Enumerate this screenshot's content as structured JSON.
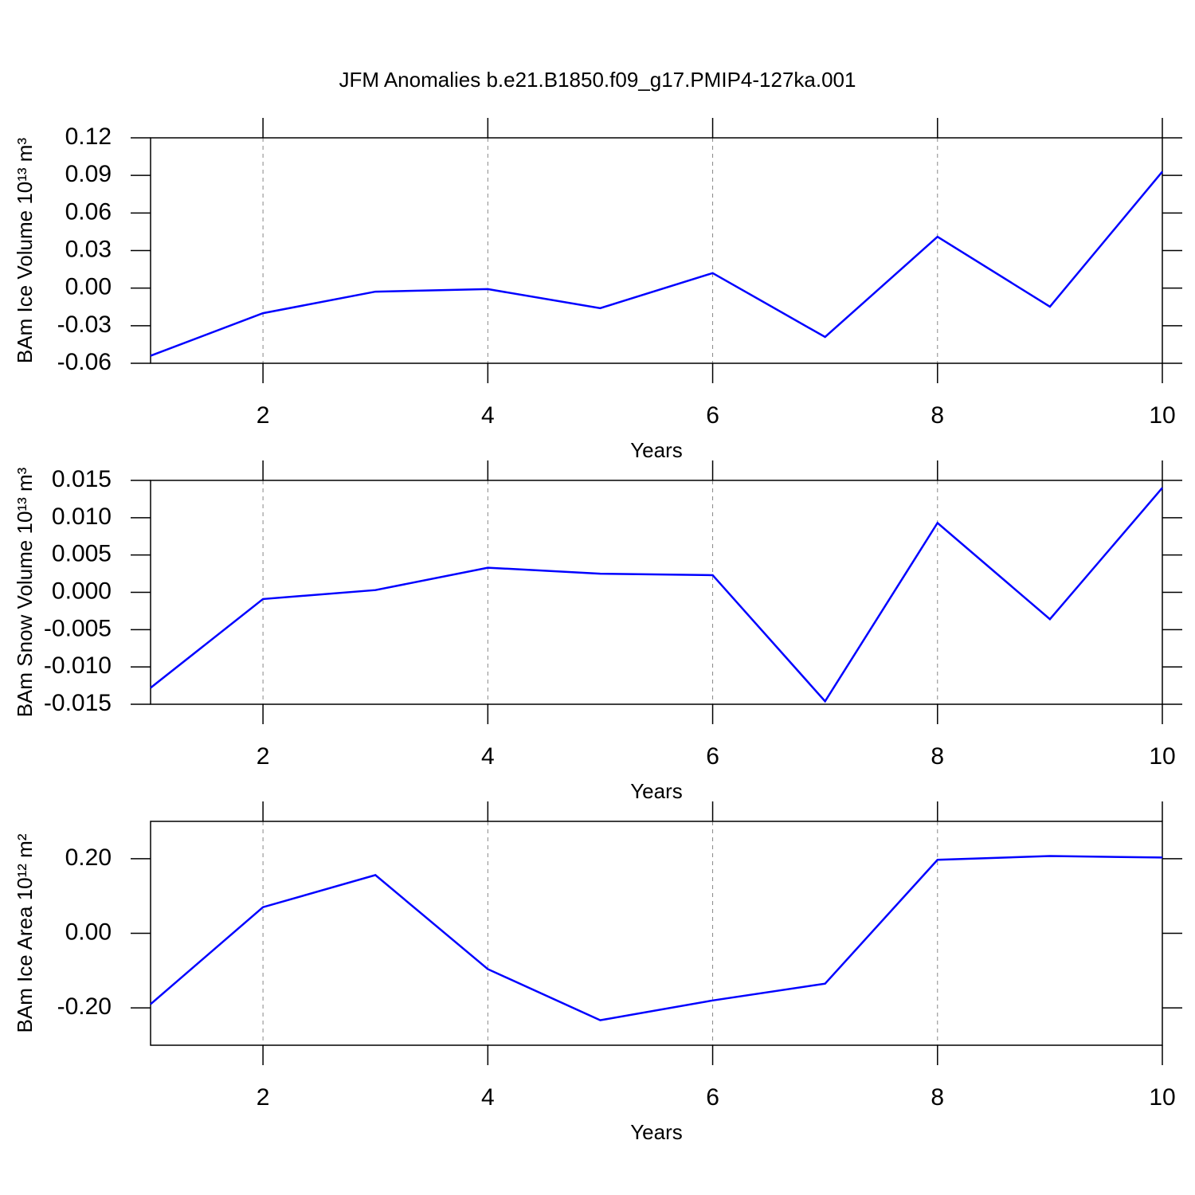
{
  "chart_data": [
    {
      "type": "line",
      "title": "JFM Anomalies b.e21.B1850.f09_g17.PMIP4-127ka.001",
      "xlabel": "Years",
      "ylabel": "BAm Ice Volume 10¹³ m³",
      "x": [
        1,
        2,
        3,
        4,
        5,
        6,
        7,
        8,
        9,
        10
      ],
      "values": [
        -0.054,
        -0.02,
        -0.0028,
        -0.0008,
        -0.016,
        0.012,
        -0.039,
        0.041,
        -0.0148,
        0.093
      ],
      "color": "#0000ff",
      "xlim": [
        1,
        10
      ],
      "xticks": [
        2,
        4,
        6,
        8,
        10
      ],
      "ylim": [
        -0.06,
        0.12
      ],
      "yticks": [
        0.12,
        0.09,
        0.06,
        0.03,
        {
          "value": 0,
          "label": "0.00"
        },
        -0.03,
        -0.06
      ],
      "grid": true
    },
    {
      "type": "line",
      "xlabel": "Years",
      "ylabel": "BAm Snow Volume 10¹³ m³",
      "x": [
        1,
        2,
        3,
        4,
        5,
        6,
        7,
        8,
        9,
        10
      ],
      "values": [
        -0.0128,
        -0.0009,
        0.0003,
        0.0033,
        0.0025,
        0.0023,
        -0.0146,
        0.0093,
        -0.0036,
        0.014
      ],
      "color": "#0000ff",
      "xlim": [
        1,
        10
      ],
      "xticks": [
        2,
        4,
        6,
        8,
        10
      ],
      "ylim": [
        -0.015,
        0.015
      ],
      "yticks": [
        0.015,
        {
          "value": 0.01,
          "label": "0.010"
        },
        0.005,
        {
          "value": 0,
          "label": "0.000"
        },
        -0.005,
        {
          "value": -0.01,
          "label": "-0.010"
        },
        -0.015
      ],
      "grid": true
    },
    {
      "type": "line",
      "xlabel": "Years",
      "ylabel": "BAm Ice Area 10¹² m²",
      "x": [
        1,
        2,
        3,
        4,
        5,
        6,
        7,
        8,
        9,
        10
      ],
      "values": [
        -0.19,
        0.07,
        0.156,
        -0.096,
        -0.233,
        -0.18,
        -0.135,
        0.197,
        0.207,
        0.203
      ],
      "color": "#0000ff",
      "xlim": [
        1,
        10
      ],
      "xticks": [
        2,
        4,
        6,
        8,
        10
      ],
      "ylim": [
        -0.3,
        0.3
      ],
      "yticks": [
        {
          "value": 0.2,
          "label": "0.20"
        },
        {
          "value": 0,
          "label": "0.00"
        },
        {
          "value": -0.2,
          "label": "-0.20"
        }
      ],
      "grid": true
    }
  ]
}
